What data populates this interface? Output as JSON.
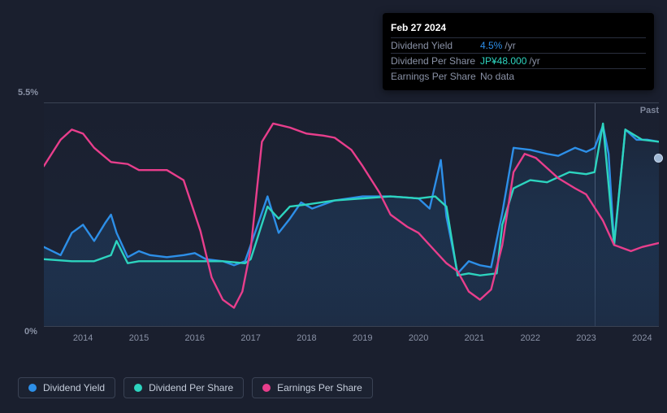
{
  "tooltip": {
    "date": "Feb 27 2024",
    "rows": [
      {
        "label": "Dividend Yield",
        "value": "4.5%",
        "unit": "/yr",
        "class": "blue"
      },
      {
        "label": "Dividend Per Share",
        "value": "JP¥48.000",
        "unit": "/yr",
        "class": "teal"
      },
      {
        "label": "Earnings Per Share",
        "value": "No data",
        "unit": "",
        "class": "nodata"
      }
    ]
  },
  "chart": {
    "y_axis": {
      "min_label": "0%",
      "max_label": "5.5%",
      "min": 0,
      "max": 5.5
    },
    "x_axis": {
      "min": 2013.3,
      "max": 2024.3,
      "ticks": [
        2014,
        2015,
        2016,
        2017,
        2018,
        2019,
        2020,
        2021,
        2022,
        2023,
        2024
      ]
    },
    "background_color": "#1a1f2e",
    "gridline_color": "#3a4254",
    "past_label": "Past",
    "crosshair_x": 2023.15,
    "marker_y": 4.35,
    "line_width": 2.4,
    "fill_opacity": 0.85,
    "series": [
      {
        "id": "dividend_yield",
        "name": "Dividend Yield",
        "color": "#2d8fe8",
        "points": [
          [
            2013.3,
            1.95
          ],
          [
            2013.6,
            1.75
          ],
          [
            2013.8,
            2.3
          ],
          [
            2014.0,
            2.5
          ],
          [
            2014.2,
            2.1
          ],
          [
            2014.4,
            2.55
          ],
          [
            2014.5,
            2.75
          ],
          [
            2014.6,
            2.3
          ],
          [
            2014.8,
            1.7
          ],
          [
            2015.0,
            1.85
          ],
          [
            2015.2,
            1.75
          ],
          [
            2015.5,
            1.7
          ],
          [
            2015.8,
            1.75
          ],
          [
            2016.0,
            1.8
          ],
          [
            2016.2,
            1.65
          ],
          [
            2016.5,
            1.6
          ],
          [
            2016.7,
            1.5
          ],
          [
            2016.9,
            1.6
          ],
          [
            2017.1,
            2.4
          ],
          [
            2017.3,
            3.2
          ],
          [
            2017.5,
            2.3
          ],
          [
            2017.7,
            2.65
          ],
          [
            2017.9,
            3.05
          ],
          [
            2018.1,
            2.9
          ],
          [
            2018.5,
            3.1
          ],
          [
            2019.0,
            3.2
          ],
          [
            2019.5,
            3.2
          ],
          [
            2020.0,
            3.15
          ],
          [
            2020.2,
            2.9
          ],
          [
            2020.4,
            4.1
          ],
          [
            2020.5,
            2.7
          ],
          [
            2020.7,
            1.3
          ],
          [
            2020.9,
            1.6
          ],
          [
            2021.1,
            1.5
          ],
          [
            2021.3,
            1.45
          ],
          [
            2021.5,
            2.8
          ],
          [
            2021.7,
            4.4
          ],
          [
            2022.0,
            4.35
          ],
          [
            2022.3,
            4.25
          ],
          [
            2022.5,
            4.2
          ],
          [
            2022.8,
            4.4
          ],
          [
            2023.0,
            4.3
          ],
          [
            2023.15,
            4.4
          ],
          [
            2023.3,
            4.95
          ],
          [
            2023.4,
            4.25
          ],
          [
            2023.5,
            2.05
          ],
          [
            2023.7,
            4.85
          ],
          [
            2023.9,
            4.6
          ],
          [
            2024.1,
            4.6
          ],
          [
            2024.3,
            4.55
          ]
        ]
      },
      {
        "id": "dividend_per_share",
        "name": "Dividend Per Share",
        "color": "#2dd4bf",
        "points": [
          [
            2013.3,
            1.65
          ],
          [
            2013.8,
            1.6
          ],
          [
            2014.2,
            1.6
          ],
          [
            2014.5,
            1.75
          ],
          [
            2014.6,
            2.1
          ],
          [
            2014.8,
            1.55
          ],
          [
            2015.0,
            1.6
          ],
          [
            2015.5,
            1.6
          ],
          [
            2016.0,
            1.6
          ],
          [
            2016.5,
            1.6
          ],
          [
            2016.9,
            1.55
          ],
          [
            2017.0,
            1.65
          ],
          [
            2017.3,
            2.95
          ],
          [
            2017.5,
            2.65
          ],
          [
            2017.7,
            2.95
          ],
          [
            2018.0,
            3.0
          ],
          [
            2018.5,
            3.1
          ],
          [
            2019.0,
            3.15
          ],
          [
            2019.5,
            3.2
          ],
          [
            2020.0,
            3.15
          ],
          [
            2020.3,
            3.2
          ],
          [
            2020.5,
            2.95
          ],
          [
            2020.7,
            1.25
          ],
          [
            2020.9,
            1.3
          ],
          [
            2021.1,
            1.25
          ],
          [
            2021.4,
            1.3
          ],
          [
            2021.5,
            2.5
          ],
          [
            2021.7,
            3.4
          ],
          [
            2022.0,
            3.6
          ],
          [
            2022.3,
            3.55
          ],
          [
            2022.7,
            3.8
          ],
          [
            2023.0,
            3.75
          ],
          [
            2023.15,
            3.8
          ],
          [
            2023.3,
            5.0
          ],
          [
            2023.5,
            2.0
          ],
          [
            2023.7,
            4.85
          ],
          [
            2024.0,
            4.6
          ],
          [
            2024.3,
            4.55
          ]
        ]
      },
      {
        "id": "earnings_per_share",
        "name": "Earnings Per Share",
        "color": "#e83e8c",
        "points": [
          [
            2013.3,
            3.95
          ],
          [
            2013.6,
            4.6
          ],
          [
            2013.8,
            4.85
          ],
          [
            2014.0,
            4.75
          ],
          [
            2014.2,
            4.4
          ],
          [
            2014.5,
            4.05
          ],
          [
            2014.8,
            4.0
          ],
          [
            2015.0,
            3.85
          ],
          [
            2015.5,
            3.85
          ],
          [
            2015.8,
            3.6
          ],
          [
            2016.1,
            2.35
          ],
          [
            2016.3,
            1.2
          ],
          [
            2016.5,
            0.65
          ],
          [
            2016.7,
            0.45
          ],
          [
            2016.85,
            0.85
          ],
          [
            2017.0,
            1.9
          ],
          [
            2017.2,
            4.55
          ],
          [
            2017.4,
            5.0
          ],
          [
            2017.7,
            4.9
          ],
          [
            2018.0,
            4.75
          ],
          [
            2018.3,
            4.7
          ],
          [
            2018.5,
            4.65
          ],
          [
            2018.8,
            4.35
          ],
          [
            2019.0,
            3.95
          ],
          [
            2019.3,
            3.3
          ],
          [
            2019.5,
            2.75
          ],
          [
            2019.8,
            2.45
          ],
          [
            2020.0,
            2.3
          ],
          [
            2020.3,
            1.85
          ],
          [
            2020.5,
            1.55
          ],
          [
            2020.7,
            1.35
          ],
          [
            2020.9,
            0.85
          ],
          [
            2021.1,
            0.65
          ],
          [
            2021.3,
            0.9
          ],
          [
            2021.5,
            2.0
          ],
          [
            2021.7,
            3.8
          ],
          [
            2021.9,
            4.25
          ],
          [
            2022.1,
            4.15
          ],
          [
            2022.3,
            3.9
          ],
          [
            2022.5,
            3.65
          ],
          [
            2022.8,
            3.4
          ],
          [
            2023.0,
            3.25
          ],
          [
            2023.3,
            2.6
          ],
          [
            2023.5,
            2.0
          ],
          [
            2023.8,
            1.85
          ],
          [
            2024.0,
            1.95
          ],
          [
            2024.3,
            2.05
          ]
        ]
      }
    ]
  },
  "legend": {
    "items": [
      {
        "label": "Dividend Yield",
        "color": "#2d8fe8"
      },
      {
        "label": "Dividend Per Share",
        "color": "#2dd4bf"
      },
      {
        "label": "Earnings Per Share",
        "color": "#e83e8c"
      }
    ]
  }
}
